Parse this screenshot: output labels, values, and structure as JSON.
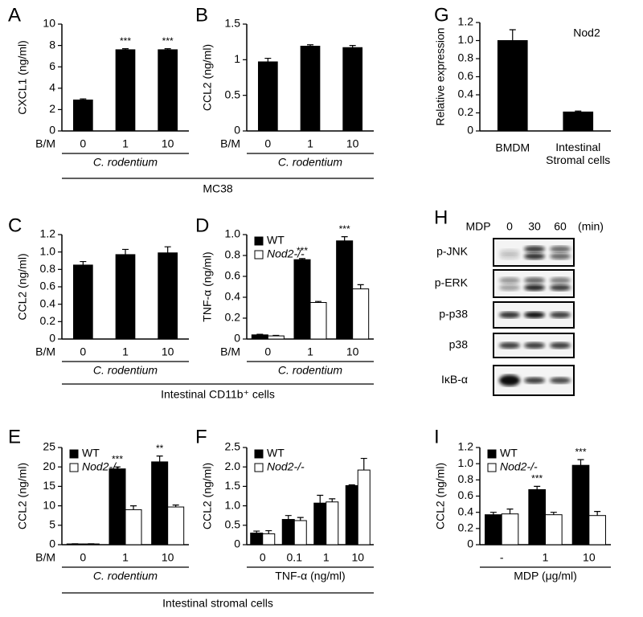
{
  "chart_data": [
    {
      "type": "bar",
      "label": "A",
      "ylabel": "CXCL1 (ng/ml)",
      "x_prefix": "B/M",
      "categories": [
        "0",
        "1",
        "10"
      ],
      "series": [
        {
          "color": "#000000",
          "values": [
            2.9,
            7.6,
            7.6
          ],
          "errors": [
            0.1,
            0.1,
            0.1
          ]
        }
      ],
      "annotations": [
        null,
        "***",
        "***"
      ],
      "group": "C. rodentium",
      "group_italic": true,
      "ylim": [
        0,
        10
      ],
      "yticks": [
        0,
        2,
        4,
        6,
        8,
        10
      ]
    },
    {
      "type": "bar",
      "label": "B",
      "ylabel": "CCL2 (ng/ml)",
      "x_prefix": "B/M",
      "categories": [
        "0",
        "1",
        "10"
      ],
      "series": [
        {
          "color": "#000000",
          "values": [
            0.97,
            1.19,
            1.17
          ],
          "errors": [
            0.05,
            0.02,
            0.03
          ]
        }
      ],
      "group": "C. rodentium",
      "group_italic": true,
      "ylim": [
        0,
        1.5
      ],
      "yticks": [
        0,
        0.5,
        1,
        1.5
      ]
    },
    {
      "type": "bar",
      "label": "G",
      "ylabel": "Relative expression",
      "categories": [
        "BMDM",
        "Intestinal Stromal cells"
      ],
      "series": [
        {
          "color": "#000000",
          "values": [
            1.0,
            0.21
          ],
          "errors": [
            0.12,
            0.01
          ]
        }
      ],
      "annotation": "Nod2",
      "ylim": [
        0,
        1.2
      ],
      "yticks": [
        0,
        0.2,
        0.4,
        0.6,
        0.8,
        {
          "value": 1,
          "label": "1.0"
        },
        1.2
      ]
    },
    {
      "type": "bar",
      "label": "C",
      "ylabel": "CCL2 (ng/ml)",
      "x_prefix": "B/M",
      "categories": [
        "0",
        "1",
        "10"
      ],
      "series": [
        {
          "color": "#000000",
          "values": [
            0.85,
            0.97,
            0.99
          ],
          "errors": [
            0.04,
            0.06,
            0.07
          ]
        }
      ],
      "group": "C. rodentium",
      "group_italic": true,
      "ylim": [
        0,
        1.2
      ],
      "yticks": [
        0,
        0.2,
        0.4,
        0.6,
        0.8,
        {
          "value": 1,
          "label": "1.0"
        },
        1.2
      ]
    },
    {
      "type": "bar",
      "label": "D",
      "ylabel": "TNF-α (ng/ml)",
      "x_prefix": "B/M",
      "categories": [
        "0",
        "1",
        "10"
      ],
      "series": [
        {
          "name": "WT",
          "color": "#000000",
          "values": [
            0.04,
            0.76,
            0.94
          ],
          "errors": [
            0.005,
            0.01,
            0.04
          ]
        },
        {
          "name": "Nod2-/-",
          "color": "#ffffff",
          "values": [
            0.03,
            0.35,
            0.48
          ],
          "errors": [
            0.005,
            0.01,
            0.04
          ]
        }
      ],
      "annotations": [
        null,
        "***",
        "***"
      ],
      "group": "C. rodentium",
      "group_italic": true,
      "ylim": [
        0,
        1
      ],
      "yticks": [
        0,
        0.2,
        0.4,
        0.6,
        0.8,
        {
          "value": 1,
          "label": "1.0"
        }
      ]
    },
    {
      "type": "bar",
      "label": "E",
      "ylabel": "CCL2 (ng/ml)",
      "x_prefix": "B/M",
      "categories": [
        "0",
        "1",
        "10"
      ],
      "series": [
        {
          "name": "WT",
          "color": "#000000",
          "values": [
            0.2,
            19.5,
            21.3
          ],
          "errors": [
            0.05,
            0.5,
            1.5
          ]
        },
        {
          "name": "Nod2-/-",
          "color": "#ffffff",
          "values": [
            0.2,
            9.0,
            9.7
          ],
          "errors": [
            0.05,
            1.0,
            0.5
          ]
        }
      ],
      "annotations": [
        null,
        "***",
        "**"
      ],
      "group": "C. rodentium",
      "group_italic": true,
      "ylim": [
        0,
        25
      ],
      "yticks": [
        0,
        5,
        10,
        15,
        20,
        25
      ]
    },
    {
      "type": "bar",
      "label": "F",
      "ylabel": "CCL2 (ng/ml)",
      "categories": [
        "0",
        "0.1",
        "1",
        "10"
      ],
      "series": [
        {
          "name": "WT",
          "color": "#000000",
          "values": [
            0.3,
            0.65,
            1.07,
            1.52
          ],
          "errors": [
            0.05,
            0.1,
            0.2,
            0.02
          ]
        },
        {
          "name": "Nod2-/-",
          "color": "#ffffff",
          "values": [
            0.28,
            0.62,
            1.1,
            1.92
          ],
          "errors": [
            0.08,
            0.08,
            0.08,
            0.3
          ]
        }
      ],
      "group": "TNF-α (ng/ml)",
      "ylim": [
        0,
        2.5
      ],
      "yticks": [
        0,
        0.5,
        {
          "value": 1,
          "label": "1.0"
        },
        1.5,
        {
          "value": 2,
          "label": "2.0"
        },
        2.5
      ]
    },
    {
      "type": "bar",
      "label": "I",
      "ylabel": "CCL2 (ng/ml)",
      "categories": [
        "-",
        "1",
        "10"
      ],
      "series": [
        {
          "name": "WT",
          "color": "#000000",
          "values": [
            0.37,
            0.68,
            0.98
          ],
          "errors": [
            0.03,
            0.04,
            0.07
          ]
        },
        {
          "name": "Nod2-/-",
          "color": "#ffffff",
          "values": [
            0.38,
            0.37,
            0.36
          ],
          "errors": [
            0.06,
            0.03,
            0.05
          ]
        }
      ],
      "annotations": [
        null,
        "***",
        "***"
      ],
      "group": "MDP (μg/ml)",
      "ylim": [
        0,
        1.2
      ],
      "yticks": [
        0,
        0.2,
        0.4,
        0.6,
        0.8,
        {
          "value": 1,
          "label": "1.0"
        },
        1.2
      ]
    }
  ],
  "shared_labels": [
    "MC38",
    "Intestinal CD11b⁺ cells",
    "Intestinal stromal cells"
  ],
  "blot": {
    "label": "H",
    "treatment": "MDP",
    "lanes": [
      "0",
      "30",
      "60"
    ],
    "unit": "(min)",
    "rows": [
      "p-JNK",
      "p-ERK",
      "p-p38",
      "p38",
      "IκB-α"
    ]
  }
}
